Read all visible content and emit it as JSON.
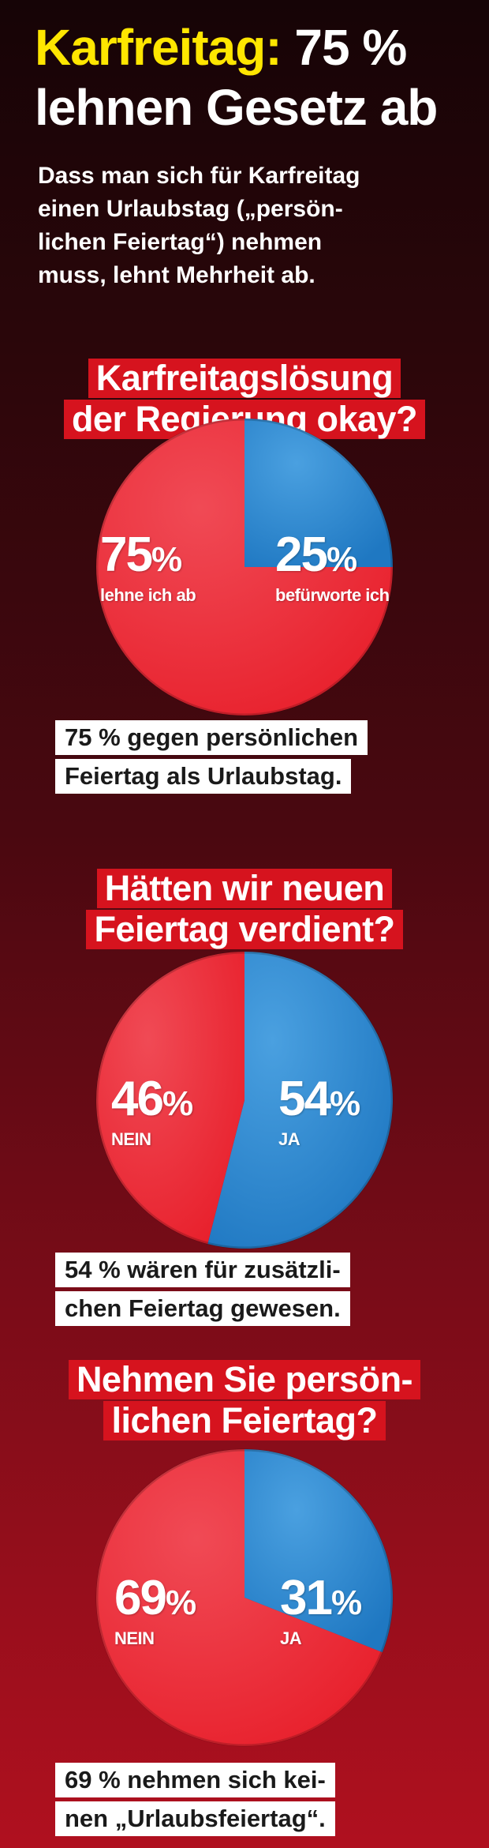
{
  "headline": {
    "line1_highlight": "Karfreitag:",
    "line1_rest": "75 %",
    "line2": "lehnen Gesetz ab"
  },
  "intro": [
    "Dass man sich für Karfreitag",
    "einen Urlaubstag („persön-",
    "lichen Feiertag“) nehmen",
    "muss, lehnt Mehrheit ab."
  ],
  "colors": {
    "red": "#e8202c",
    "blue": "#1f78c2",
    "banner": "#d6131e"
  },
  "chart_data": [
    {
      "type": "pie",
      "title": [
        "Karfreitagslösung",
        "der Regierung okay?"
      ],
      "slices": [
        {
          "value": 75,
          "label": "75%",
          "sublabel": "lehne ich ab",
          "color": "#e8202c"
        },
        {
          "value": 25,
          "label": "25%",
          "sublabel": "befürworte ich",
          "color": "#1f78c2"
        }
      ],
      "caption": [
        "75 % gegen persönlichen",
        "Feiertag als Urlaubstag."
      ]
    },
    {
      "type": "pie",
      "title": [
        "Hätten wir neuen",
        "Feiertag verdient?"
      ],
      "slices": [
        {
          "value": 46,
          "label": "46%",
          "sublabel": "NEIN",
          "color": "#e8202c"
        },
        {
          "value": 54,
          "label": "54%",
          "sublabel": "JA",
          "color": "#1f78c2"
        }
      ],
      "caption": [
        "54 % wären für zusätzli-",
        "chen Feiertag gewesen."
      ]
    },
    {
      "type": "pie",
      "title": [
        "Nehmen Sie persön-",
        "lichen Feiertag?"
      ],
      "slices": [
        {
          "value": 69,
          "label": "69%",
          "sublabel": "NEIN",
          "color": "#e8202c"
        },
        {
          "value": 31,
          "label": "31%",
          "sublabel": "JA",
          "color": "#1f78c2"
        }
      ],
      "caption": [
        "69 % nehmen sich kei-",
        "nen „Urlaubsfeiertag“."
      ]
    }
  ]
}
